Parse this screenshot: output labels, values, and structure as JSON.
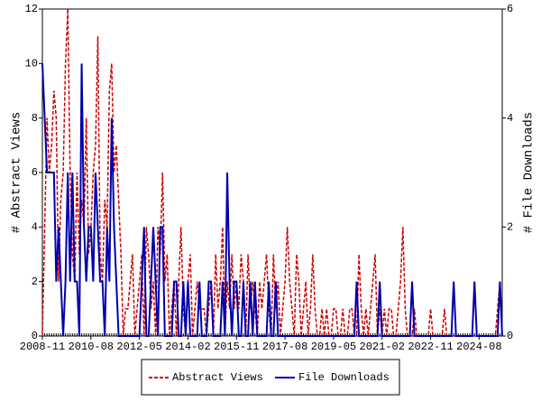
{
  "chart_data": {
    "type": "line",
    "ylabel": "# Abstract Views",
    "y2label": "# File Downloads",
    "x": [
      "2008-11",
      "2008-12",
      "2009-01",
      "2009-02",
      "2009-03",
      "2009-04",
      "2009-05",
      "2009-06",
      "2009-07",
      "2009-08",
      "2009-09",
      "2009-10",
      "2009-11",
      "2009-12",
      "2010-01",
      "2010-02",
      "2010-03",
      "2010-04",
      "2010-05",
      "2010-06",
      "2010-07",
      "2010-08",
      "2010-09",
      "2010-10",
      "2010-11",
      "2010-12",
      "2011-01",
      "2011-02",
      "2011-03",
      "2011-04",
      "2011-05",
      "2011-06",
      "2011-07",
      "2011-08",
      "2011-09",
      "2011-10",
      "2011-11",
      "2011-12",
      "2012-01",
      "2012-02",
      "2012-03",
      "2012-04",
      "2012-05",
      "2012-06",
      "2012-07",
      "2012-08",
      "2012-09",
      "2012-10",
      "2012-11",
      "2012-12",
      "2013-01",
      "2013-02",
      "2013-03",
      "2013-04",
      "2013-05",
      "2013-06",
      "2013-07",
      "2013-08",
      "2013-09",
      "2013-10",
      "2013-11",
      "2013-12",
      "2014-01",
      "2014-02",
      "2014-03",
      "2014-04",
      "2014-05",
      "2014-06",
      "2014-07",
      "2014-08",
      "2014-09",
      "2014-10",
      "2014-11",
      "2014-12",
      "2015-01",
      "2015-02",
      "2015-03",
      "2015-04",
      "2015-05",
      "2015-06",
      "2015-07",
      "2015-08",
      "2015-09",
      "2015-10",
      "2015-11",
      "2015-12",
      "2016-01",
      "2016-02",
      "2016-03",
      "2016-04",
      "2016-05",
      "2016-06",
      "2016-07",
      "2016-08",
      "2016-09",
      "2016-10",
      "2016-11",
      "2016-12",
      "2017-01",
      "2017-02",
      "2017-03",
      "2017-04",
      "2017-05",
      "2017-06",
      "2017-07",
      "2017-08",
      "2017-09",
      "2017-10",
      "2017-11",
      "2017-12",
      "2018-01",
      "2018-02",
      "2018-03",
      "2018-04",
      "2018-05",
      "2018-06",
      "2018-07",
      "2018-08",
      "2018-09",
      "2018-10",
      "2018-11",
      "2018-12",
      "2019-01",
      "2019-02",
      "2019-03",
      "2019-04",
      "2019-05",
      "2019-06",
      "2019-07",
      "2019-08",
      "2019-09",
      "2019-10",
      "2019-11",
      "2019-12",
      "2020-01",
      "2020-02",
      "2020-03",
      "2020-04",
      "2020-05",
      "2020-06",
      "2020-07",
      "2020-08",
      "2020-09",
      "2020-10",
      "2020-11",
      "2020-12",
      "2021-01",
      "2021-02",
      "2021-03",
      "2021-04",
      "2021-05",
      "2021-06",
      "2021-07",
      "2021-08",
      "2021-09",
      "2021-10",
      "2021-11",
      "2021-12",
      "2022-01",
      "2022-02",
      "2022-03",
      "2022-04",
      "2022-05",
      "2022-06",
      "2022-07",
      "2022-08",
      "2022-09",
      "2022-10",
      "2022-11",
      "2022-12",
      "2023-01",
      "2023-02",
      "2023-03",
      "2023-04",
      "2023-05",
      "2023-06",
      "2023-07",
      "2023-08",
      "2023-09",
      "2023-10",
      "2023-11",
      "2023-12",
      "2024-01",
      "2024-02",
      "2024-03",
      "2024-04",
      "2024-05",
      "2024-06",
      "2024-07",
      "2024-08",
      "2024-09",
      "2024-10",
      "2024-11",
      "2024-12",
      "2025-01",
      "2025-02",
      "2025-03",
      "2025-04",
      "2025-05",
      "2025-06"
    ],
    "xticks": [
      "2008-11",
      "2010-08",
      "2012-05",
      "2014-02",
      "2015-11",
      "2017-08",
      "2019-05",
      "2021-02",
      "2022-11",
      "2024-08"
    ],
    "ylim": [
      0,
      12
    ],
    "yticks": [
      0,
      2,
      4,
      6,
      8,
      10,
      12
    ],
    "y2lim": [
      0,
      6
    ],
    "y2ticks": [
      0,
      2,
      4,
      6
    ],
    "series": [
      {
        "name": "Abstract Views",
        "color": "#cc0000",
        "dash": true,
        "values": [
          0,
          4,
          8,
          6,
          7,
          9,
          8,
          2,
          5,
          6,
          10,
          12,
          6,
          3,
          2,
          6,
          3,
          5,
          4,
          8,
          3,
          4,
          6,
          7,
          11,
          3,
          2,
          5,
          4,
          9,
          10,
          6,
          7,
          5,
          3,
          0,
          1,
          1,
          2,
          3,
          0,
          1,
          2,
          3,
          0,
          4,
          3,
          1,
          2,
          0,
          4,
          3,
          6,
          2,
          3,
          0,
          1,
          2,
          0,
          2,
          4,
          1,
          0,
          2,
          3,
          0,
          1,
          2,
          1,
          1,
          1,
          0,
          1,
          2,
          0,
          3,
          1,
          2,
          4,
          0,
          2,
          1,
          3,
          1,
          2,
          1,
          3,
          2,
          0,
          3,
          1,
          2,
          1,
          0,
          2,
          1,
          2,
          3,
          1,
          0,
          3,
          1,
          2,
          0,
          1,
          2,
          4,
          2,
          1,
          0,
          3,
          2,
          0,
          1,
          2,
          0,
          1,
          3,
          1,
          0,
          0,
          1,
          0,
          1,
          0,
          0,
          1,
          1,
          0,
          0,
          1,
          0,
          0,
          1,
          1,
          0,
          0,
          3,
          1,
          0,
          1,
          0,
          1,
          2,
          3,
          0,
          1,
          0,
          1,
          0,
          1,
          1,
          0,
          0,
          1,
          2,
          4,
          1,
          0,
          0,
          0,
          1,
          0,
          0,
          0,
          0,
          0,
          0,
          1,
          0,
          0,
          0,
          0,
          0,
          1,
          0,
          0,
          0,
          0,
          0,
          0,
          0,
          0,
          0,
          0,
          0,
          0,
          0,
          0,
          0,
          0,
          0,
          0,
          0,
          0,
          0,
          0,
          1,
          2,
          0
        ]
      },
      {
        "name": "File Downloads",
        "color": "#0000aa",
        "axis": "y2",
        "values": [
          5,
          4,
          3,
          3,
          3,
          3,
          1,
          2,
          1,
          0,
          1,
          3,
          1,
          3,
          1,
          1,
          0,
          5,
          2,
          1,
          2,
          2,
          1,
          3,
          2,
          1,
          1,
          0,
          2,
          1,
          4,
          2,
          1,
          0,
          0,
          0,
          0,
          0,
          0,
          0,
          0,
          0,
          0,
          1,
          2,
          0,
          0,
          1,
          2,
          1,
          0,
          2,
          2,
          0,
          0,
          0,
          0,
          1,
          1,
          0,
          0,
          1,
          0,
          1,
          0,
          0,
          0,
          0,
          1,
          0,
          0,
          0,
          1,
          1,
          0,
          0,
          0,
          0,
          1,
          0,
          3,
          1,
          0,
          1,
          1,
          0,
          0,
          1,
          0,
          0,
          1,
          0,
          1,
          0,
          0,
          0,
          0,
          0,
          1,
          0,
          0,
          1,
          0,
          0,
          0,
          0,
          0,
          0,
          0,
          0,
          0,
          0,
          0,
          0,
          0,
          0,
          0,
          0,
          0,
          0,
          0,
          0,
          0,
          0,
          0,
          0,
          0,
          0,
          0,
          0,
          0,
          0,
          0,
          0,
          0,
          0,
          1,
          0,
          0,
          0,
          0,
          0,
          0,
          0,
          0,
          0,
          1,
          0,
          0,
          0,
          0,
          0,
          0,
          0,
          0,
          0,
          0,
          0,
          0,
          0,
          1,
          0,
          0,
          0,
          0,
          0,
          0,
          0,
          0,
          0,
          0,
          0,
          0,
          0,
          0,
          0,
          0,
          0,
          1,
          0,
          0,
          0,
          0,
          0,
          0,
          0,
          0,
          1,
          0,
          0,
          0,
          0,
          0,
          0,
          0,
          0,
          0,
          0,
          1,
          0
        ]
      }
    ]
  }
}
